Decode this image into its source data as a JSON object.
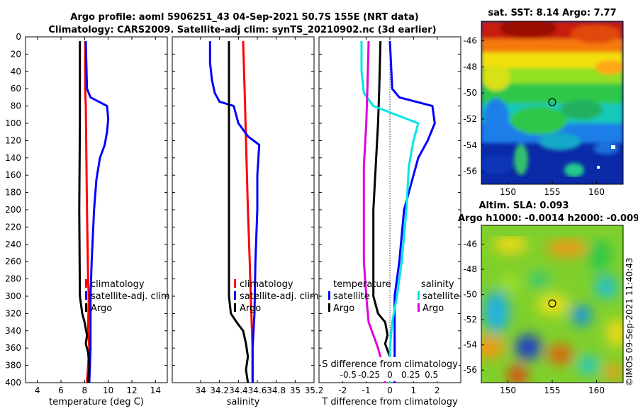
{
  "title_line1": "Argo profile: aoml 5906251_43 04-Sep-2021 50.7S 155E (NRT data)",
  "title_line2": "Climatology: CARS2009. Satellite-adj clim: synTS_20210902.nc (3d earlier)",
  "colors": {
    "climatology": "#ff0000",
    "satellite": "#0000ff",
    "argo": "#000000",
    "sat_salinity": "#00e5e5",
    "argo_salinity": "#e000e0"
  },
  "chart_data": [
    {
      "type": "line",
      "id": "temperature",
      "xlabel": "temperature (deg C)",
      "xlim": [
        3,
        15
      ],
      "ylim": [
        0,
        400
      ],
      "xticks": [
        4,
        6,
        8,
        10,
        12,
        14
      ],
      "yticks": [
        0,
        20,
        40,
        60,
        80,
        100,
        120,
        140,
        160,
        180,
        200,
        220,
        240,
        260,
        280,
        300,
        320,
        340,
        360,
        380,
        400
      ],
      "legend": [
        "climatology",
        "satellite-adj. clim",
        "Argo"
      ],
      "series": [
        {
          "name": "climatology",
          "color": "#ff0000",
          "points": [
            [
              8.05,
              5
            ],
            [
              8.05,
              60
            ],
            [
              8.1,
              80
            ],
            [
              8.2,
              200
            ],
            [
              8.3,
              280
            ],
            [
              8.35,
              300
            ],
            [
              8.3,
              340
            ],
            [
              8.4,
              360
            ],
            [
              8.3,
              380
            ],
            [
              8.2,
              400
            ]
          ]
        },
        {
          "name": "satellite-adj. clim",
          "color": "#0000ff",
          "points": [
            [
              8.1,
              5
            ],
            [
              8.2,
              60
            ],
            [
              8.5,
              70
            ],
            [
              9.9,
              80
            ],
            [
              10.0,
              95
            ],
            [
              9.9,
              110
            ],
            [
              9.7,
              125
            ],
            [
              9.3,
              140
            ],
            [
              9.0,
              165
            ],
            [
              8.8,
              200
            ],
            [
              8.6,
              260
            ],
            [
              8.5,
              300
            ],
            [
              8.5,
              340
            ],
            [
              8.5,
              360
            ],
            [
              8.4,
              400
            ]
          ]
        },
        {
          "name": "Argo",
          "color": "#000000",
          "points": [
            [
              7.6,
              5
            ],
            [
              7.6,
              100
            ],
            [
              7.55,
              200
            ],
            [
              7.6,
              300
            ],
            [
              7.8,
              320
            ],
            [
              8.0,
              330
            ],
            [
              8.2,
              345
            ],
            [
              8.1,
              355
            ],
            [
              8.3,
              365
            ],
            [
              8.4,
              380
            ],
            [
              8.3,
              400
            ]
          ]
        }
      ]
    },
    {
      "type": "line",
      "id": "salinity",
      "xlabel": "salinity",
      "xlim": [
        33.7,
        35.2
      ],
      "ylim": [
        0,
        400
      ],
      "xticks": [
        34,
        34.2,
        34.4,
        34.6,
        34.8,
        35,
        35.2
      ],
      "yticks": [
        0,
        20,
        40,
        60,
        80,
        100,
        120,
        140,
        160,
        180,
        200,
        220,
        240,
        260,
        280,
        300,
        320,
        340,
        360,
        380,
        400
      ],
      "legend": [
        "climatology",
        "satellite-adj. clim",
        "Argo"
      ],
      "series": [
        {
          "name": "climatology",
          "color": "#ff0000",
          "points": [
            [
              34.45,
              5
            ],
            [
              34.46,
              40
            ],
            [
              34.47,
              80
            ],
            [
              34.48,
              120
            ],
            [
              34.5,
              200
            ],
            [
              34.52,
              260
            ],
            [
              34.53,
              300
            ],
            [
              34.54,
              330
            ],
            [
              34.55,
              360
            ],
            [
              34.55,
              400
            ]
          ]
        },
        {
          "name": "satellite-adj. clim",
          "color": "#0000ff",
          "points": [
            [
              34.1,
              5
            ],
            [
              34.1,
              30
            ],
            [
              34.12,
              50
            ],
            [
              34.15,
              65
            ],
            [
              34.2,
              75
            ],
            [
              34.35,
              80
            ],
            [
              34.4,
              100
            ],
            [
              34.5,
              115
            ],
            [
              34.62,
              125
            ],
            [
              34.6,
              160
            ],
            [
              34.6,
              200
            ],
            [
              34.58,
              260
            ],
            [
              34.57,
              320
            ],
            [
              34.55,
              360
            ],
            [
              34.55,
              400
            ]
          ]
        },
        {
          "name": "Argo",
          "color": "#000000",
          "points": [
            [
              34.3,
              5
            ],
            [
              34.3,
              100
            ],
            [
              34.3,
              200
            ],
            [
              34.3,
              300
            ],
            [
              34.32,
              320
            ],
            [
              34.38,
              330
            ],
            [
              34.45,
              340
            ],
            [
              34.48,
              355
            ],
            [
              34.5,
              370
            ],
            [
              34.48,
              385
            ],
            [
              34.5,
              400
            ]
          ]
        }
      ]
    },
    {
      "type": "line",
      "id": "difference",
      "xlabel": "T difference from climatology",
      "secondary_xlabel": "S difference from climatology",
      "xlim": [
        -3,
        3
      ],
      "ylim": [
        0,
        400
      ],
      "xticks": [
        -2,
        -1,
        0,
        1,
        2
      ],
      "secondary_xticks": [
        "-0.5",
        "-0.25",
        "0",
        "0.25",
        "0.5"
      ],
      "yticks": [
        0,
        20,
        40,
        60,
        80,
        100,
        120,
        140,
        160,
        180,
        200,
        220,
        240,
        260,
        280,
        300,
        320,
        340,
        360,
        380,
        400
      ],
      "legend_headers": [
        "temperature",
        "salinity"
      ],
      "legend": [
        "satellite",
        "Argo",
        "satellite",
        "Argo"
      ],
      "series": [
        {
          "name": "temperature satellite",
          "color": "#0000ff",
          "points": [
            [
              0,
              5
            ],
            [
              0.1,
              60
            ],
            [
              0.4,
              70
            ],
            [
              1.8,
              80
            ],
            [
              1.9,
              100
            ],
            [
              1.6,
              120
            ],
            [
              1.2,
              140
            ],
            [
              0.9,
              170
            ],
            [
              0.6,
              200
            ],
            [
              0.4,
              260
            ],
            [
              0.2,
              300
            ],
            [
              0.2,
              340
            ],
            [
              0.2,
              360
            ],
            [
              0.2,
              400
            ]
          ]
        },
        {
          "name": "temperature Argo",
          "color": "#000000",
          "points": [
            [
              -0.4,
              5
            ],
            [
              -0.45,
              60
            ],
            [
              -0.5,
              100
            ],
            [
              -0.6,
              150
            ],
            [
              -0.7,
              200
            ],
            [
              -0.7,
              260
            ],
            [
              -0.7,
              300
            ],
            [
              -0.5,
              320
            ],
            [
              -0.2,
              330
            ],
            [
              -0.1,
              345
            ],
            [
              -0.2,
              355
            ],
            [
              0.0,
              370
            ],
            [
              0.0,
              400
            ]
          ]
        },
        {
          "name": "salinity satellite",
          "color": "#00e5e5",
          "points": [
            [
              -1.2,
              5
            ],
            [
              -1.2,
              40
            ],
            [
              -1.1,
              65
            ],
            [
              -0.7,
              80
            ],
            [
              1.2,
              100
            ],
            [
              1.0,
              120
            ],
            [
              0.8,
              150
            ],
            [
              0.7,
              200
            ],
            [
              0.5,
              260
            ],
            [
              0.3,
              300
            ],
            [
              0.1,
              330
            ],
            [
              0.0,
              360
            ],
            [
              0.0,
              400
            ]
          ]
        },
        {
          "name": "salinity Argo",
          "color": "#e000e0",
          "points": [
            [
              -0.9,
              5
            ],
            [
              -0.95,
              60
            ],
            [
              -1.0,
              100
            ],
            [
              -1.1,
              150
            ],
            [
              -1.1,
              200
            ],
            [
              -1.1,
              260
            ],
            [
              -1.0,
              300
            ],
            [
              -0.9,
              330
            ],
            [
              -0.7,
              345
            ],
            [
              -0.5,
              360
            ],
            [
              -0.3,
              380
            ],
            [
              -0.2,
              400
            ]
          ]
        }
      ]
    },
    {
      "type": "heatmap",
      "id": "sst_map",
      "title": "sat. SST: 8.14 Argo: 7.77",
      "xlim": [
        147,
        163
      ],
      "ylim": [
        -57,
        -44.5
      ],
      "xticks": [
        150,
        155,
        160
      ],
      "yticks": [
        -46,
        -48,
        -50,
        -52,
        -54,
        -56
      ],
      "marker": [
        155,
        -50.7
      ]
    },
    {
      "type": "heatmap",
      "id": "sla_map",
      "title_line1": "Altim. SLA: 0.093",
      "title_line2": "Argo h1000: -0.0014 h2000: -0.009",
      "xlim": [
        147,
        163
      ],
      "ylim": [
        -57,
        -44.5
      ],
      "xticks": [
        150,
        155,
        160
      ],
      "yticks": [
        -46,
        -48,
        -50,
        -52,
        -54,
        -56
      ],
      "marker": [
        155,
        -50.7
      ]
    }
  ],
  "watermark": "©IMOS 09-Sep-2021 11:40:43"
}
